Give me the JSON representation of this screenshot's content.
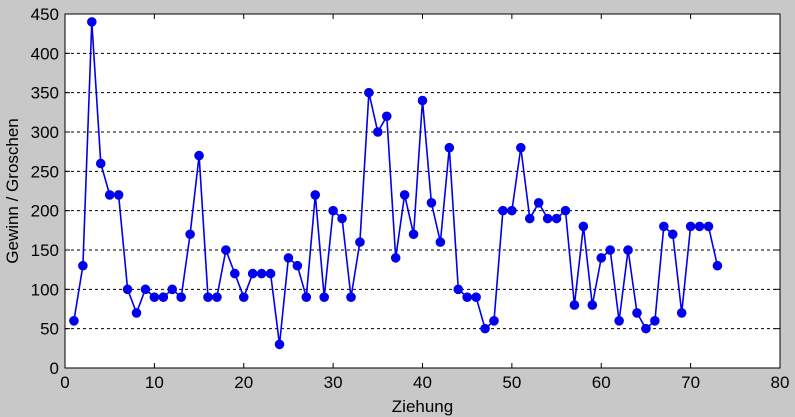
{
  "chart_data": {
    "type": "line",
    "title": "",
    "xlabel": "Ziehung",
    "ylabel": "Gewinn / Groschen",
    "xlim": [
      0,
      80
    ],
    "ylim": [
      0,
      450
    ],
    "xticks": [
      0,
      10,
      20,
      30,
      40,
      50,
      60,
      70,
      80
    ],
    "yticks": [
      0,
      50,
      100,
      150,
      200,
      250,
      300,
      350,
      400,
      450
    ],
    "grid": "horizontal dashed",
    "series_color": "#0000ee",
    "marker": "circle",
    "x": [
      1,
      2,
      3,
      4,
      5,
      6,
      7,
      8,
      9,
      10,
      11,
      12,
      13,
      14,
      15,
      16,
      17,
      18,
      19,
      20,
      21,
      22,
      23,
      24,
      25,
      26,
      27,
      28,
      29,
      30,
      31,
      32,
      33,
      34,
      35,
      36,
      37,
      38,
      39,
      40,
      41,
      42,
      43,
      44,
      45,
      46,
      47,
      48,
      49,
      50,
      51,
      52,
      53,
      54,
      55,
      56,
      57,
      58,
      59,
      60,
      61,
      62,
      63,
      64,
      65,
      66,
      67,
      68,
      69,
      70,
      71,
      72,
      73
    ],
    "y": [
      60,
      130,
      440,
      260,
      220,
      220,
      100,
      70,
      100,
      90,
      90,
      100,
      90,
      170,
      270,
      90,
      90,
      150,
      120,
      90,
      120,
      120,
      120,
      30,
      140,
      130,
      90,
      220,
      90,
      200,
      190,
      90,
      160,
      350,
      300,
      320,
      140,
      220,
      170,
      340,
      210,
      160,
      280,
      100,
      90,
      90,
      50,
      60,
      200,
      200,
      280,
      190,
      210,
      190,
      190,
      200,
      80,
      180,
      80,
      140,
      150,
      60,
      150,
      70,
      50,
      60,
      180,
      170,
      70,
      180,
      180,
      180,
      130
    ]
  }
}
